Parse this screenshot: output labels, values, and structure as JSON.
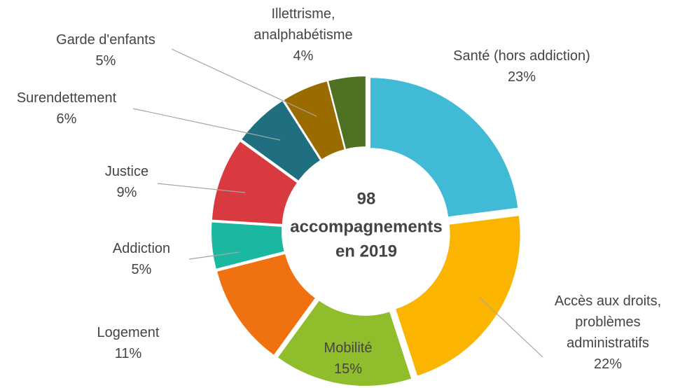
{
  "chart_data": {
    "type": "donut",
    "center_lines": [
      "98",
      "accompagnements",
      "en 2019"
    ],
    "categories": [
      "Santé (hors addiction)",
      "Accès aux droits, problèmes administratifs",
      "Mobilité",
      "Logement",
      "Addiction",
      "Justice",
      "Surendettement",
      "Garde d'enfants",
      "Illettrisme, analphabétisme"
    ],
    "values": [
      23,
      22,
      15,
      11,
      5,
      9,
      6,
      5,
      4
    ],
    "value_labels": [
      "23%",
      "22%",
      "15%",
      "11%",
      "5%",
      "9%",
      "6%",
      "5%",
      "4%"
    ],
    "colors": [
      "#40bad5",
      "#fbb500",
      "#8fbd2b",
      "#ef710f",
      "#1ab8a0",
      "#d93a3f",
      "#1f6f80",
      "#9a6c00",
      "#4e7222"
    ]
  }
}
